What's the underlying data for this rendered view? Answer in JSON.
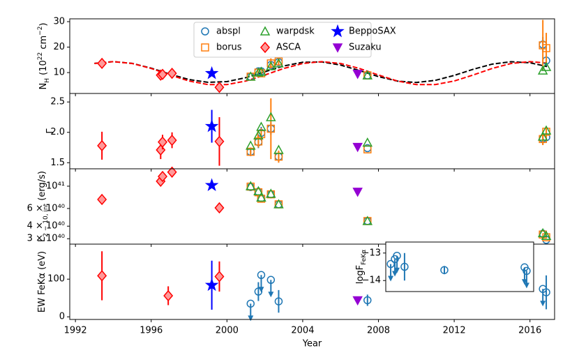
{
  "chart_data": [
    {
      "type": "scatter",
      "xlim": [
        1991.7,
        2017.3
      ],
      "ylim": [
        1.8,
        31.1
      ],
      "yticks": [
        10,
        20,
        30
      ],
      "ylabel_parts": [
        {
          "text": "N",
          "shift": null
        },
        {
          "text": "H",
          "shift": "sub"
        },
        {
          "text": " (10",
          "shift": null
        },
        {
          "text": "22",
          "shift": "super"
        },
        {
          "text": " cm",
          "shift": null
        },
        {
          "text": "−2",
          "shift": "super"
        },
        {
          "text": ")",
          "shift": null
        }
      ],
      "legend": "upper center",
      "curves": [
        {
          "color": "#000000",
          "style": "dashed",
          "x": [
            1993,
            1994,
            1995,
            1996,
            1997,
            1998,
            1999,
            2000,
            2001,
            2002,
            2003,
            2004,
            2005,
            2006,
            2007,
            2008,
            2009,
            2010,
            2011,
            2012,
            2013,
            2014,
            2015,
            2016,
            2016.9
          ],
          "values": [
            13.6,
            14.3,
            13.6,
            11.74,
            9.36,
            7.26,
            6.17,
            6.46,
            8.01,
            10.32,
            12.59,
            14.04,
            14.18,
            12.96,
            10.8,
            8.43,
            6.67,
            6.11,
            6.94,
            8.89,
            11.29,
            13.31,
            14.27,
            13.84,
            12.38
          ]
        },
        {
          "color": "#ff0000",
          "style": "dashed",
          "x": [
            1993,
            1994,
            1995,
            1996,
            1997,
            1998,
            1999,
            2000,
            2001,
            2002,
            2003,
            2004,
            2005,
            2006,
            2007,
            2008,
            2009,
            2010,
            2011,
            2012,
            2013,
            2014,
            2015,
            2016,
            2016.9
          ],
          "values": [
            13.57,
            14.3,
            13.57,
            11.61,
            9.05,
            6.69,
            5.29,
            5.29,
            6.69,
            9.05,
            11.61,
            13.57,
            14.3,
            13.57,
            11.61,
            9.05,
            6.69,
            5.29,
            5.29,
            6.69,
            9.05,
            11.61,
            13.57,
            14.3,
            13.71
          ]
        }
      ],
      "series": [
        {
          "name": "abspl",
          "color": "#1f77b4",
          "marker": "circle",
          "fill": "none",
          "x": [
            2001.25,
            2001.66,
            2001.81,
            2002.32,
            2002.73,
            2007.42,
            2016.68,
            2016.86
          ],
          "values": [
            8.4,
            10.5,
            10.5,
            13.0,
            14.1,
            8.9,
            21,
            14.7
          ],
          "errors": [
            null,
            null,
            null,
            1.5,
            1.5,
            null,
            3,
            2
          ]
        },
        {
          "name": "borus",
          "color": "#ff7f0e",
          "marker": "square",
          "fill": "none",
          "x": [
            2001.25,
            2001.66,
            2001.81,
            2002.32,
            2002.73,
            2007.42,
            2016.68,
            2016.86
          ],
          "values": [
            8.4,
            10,
            9.7,
            13.6,
            14.4,
            8.9,
            20.7,
            19.6
          ],
          "errors": [
            null,
            null,
            null,
            2,
            1.5,
            null,
            10,
            6
          ]
        },
        {
          "name": "warpdsk",
          "color": "#2ca02c",
          "marker": "triangle",
          "fill": "none",
          "x": [
            2001.25,
            2001.66,
            2001.81,
            2002.32,
            2002.73,
            2007.42,
            2016.68,
            2016.86
          ],
          "values": [
            8.4,
            10,
            10.3,
            12.5,
            13.6,
            8.9,
            10.8,
            12.2
          ],
          "errors": [
            null,
            null,
            null,
            null,
            null,
            null,
            null,
            null
          ]
        },
        {
          "name": "ASCA",
          "color": "#ff0000",
          "marker": "diamond",
          "fill": "#ff9999",
          "x": [
            1993.4,
            1996.5,
            1996.6,
            1997.1,
            1999.6
          ],
          "values": [
            13.6,
            9.0,
            9.3,
            9.7,
            4.2
          ],
          "errors": [
            1,
            null,
            null,
            null,
            null
          ]
        },
        {
          "name": "BeppoSAX",
          "color": "#0000ff",
          "marker": "star",
          "fill": "#0000ff",
          "x": [
            1999.2
          ],
          "values": [
            9.7
          ],
          "errors": [
            null
          ]
        },
        {
          "name": "Suzaku",
          "color": "#9400d3",
          "marker": "triangle-down",
          "fill": "#9400d3",
          "x": [
            2006.9
          ],
          "values": [
            9.5
          ],
          "errors": [
            null
          ]
        }
      ]
    },
    {
      "type": "scatter",
      "xlim": [
        1991.7,
        2017.3
      ],
      "ylim": [
        1.4,
        2.64
      ],
      "yticks": [
        {
          "value": 1.5,
          "label": "1.5"
        },
        {
          "value": 2.0,
          "label": "2.0"
        },
        {
          "value": 2.5,
          "label": "2.5"
        }
      ],
      "ylabel_parts": [
        {
          "text": "Γ",
          "shift": null
        }
      ],
      "series": [
        {
          "name": "abspl",
          "color": "#1f77b4",
          "marker": "circle",
          "fill": "none",
          "x": [
            2001.25,
            2001.66,
            2001.81,
            2002.32,
            2002.73,
            2007.42,
            2016.68,
            2016.86
          ],
          "values": [
            1.68,
            1.84,
            1.99,
            2.06,
            1.6,
            1.74,
            1.9,
            1.92
          ],
          "errors": [
            0.07,
            0.1,
            0.1,
            0.1,
            0.08,
            null,
            0.1,
            0.08
          ]
        },
        {
          "name": "borus",
          "color": "#ff7f0e",
          "marker": "square",
          "fill": "none",
          "x": [
            2001.25,
            2001.66,
            2001.81,
            2002.32,
            2002.73,
            2007.42,
            2016.68,
            2016.86
          ],
          "values": [
            1.68,
            1.85,
            1.97,
            2.06,
            1.6,
            1.72,
            1.89,
            2.01
          ],
          "errors": [
            0.07,
            0.1,
            0.1,
            0.5,
            0.1,
            null,
            0.1,
            0.08
          ]
        },
        {
          "name": "warpdsk",
          "color": "#2ca02c",
          "marker": "triangle",
          "fill": "none",
          "x": [
            2001.25,
            2001.66,
            2001.81,
            2002.32,
            2002.73,
            2007.42,
            2016.68,
            2016.86
          ],
          "values": [
            1.78,
            1.95,
            2.09,
            2.25,
            1.71,
            1.83,
            1.93,
            2.03
          ],
          "errors": [
            null,
            null,
            null,
            null,
            null,
            null,
            null,
            null
          ]
        },
        {
          "name": "ASCA",
          "color": "#ff0000",
          "marker": "diamond",
          "fill": "#ff9999",
          "x": [
            1993.4,
            1996.5,
            1996.6,
            1997.1,
            1999.6
          ],
          "values": [
            1.78,
            1.71,
            1.84,
            1.87,
            1.85
          ],
          "errors": [
            0.23,
            0.15,
            0.12,
            0.13,
            0.4
          ]
        },
        {
          "name": "BeppoSAX",
          "color": "#0000ff",
          "marker": "star",
          "fill": "#0000ff",
          "x": [
            1999.2
          ],
          "values": [
            2.1
          ],
          "errors": [
            0.27
          ]
        },
        {
          "name": "Suzaku",
          "color": "#9400d3",
          "marker": "triangle-down",
          "fill": "#9400d3",
          "x": [
            2006.9
          ],
          "values": [
            1.76
          ],
          "errors": [
            null
          ]
        }
      ]
    },
    {
      "type": "scatter",
      "xlim": [
        1991.7,
        2017.3
      ],
      "ylim": [
        2.65e+40,
        1.49e+41
      ],
      "ylog": true,
      "yticks": [
        {
          "value": 3e+40,
          "label": "3 × 10⁴⁰"
        },
        {
          "value": 4e+40,
          "label": "4 × 10⁴⁰"
        },
        {
          "value": 6e+40,
          "label": "6 × 10⁴⁰"
        },
        {
          "value": 1e+41,
          "label": "10⁴¹"
        }
      ],
      "ylabel_parts": [
        {
          "text": "L",
          "shift": null
        },
        {
          "text": "2 − 10, int",
          "shift": "sub"
        },
        {
          "text": " (erg/s)",
          "shift": null
        }
      ],
      "series": [
        {
          "name": "abspl",
          "color": "#1f77b4",
          "marker": "circle",
          "fill": "none",
          "x": [
            2001.25,
            2001.66,
            2001.81,
            2002.32,
            2002.73,
            2007.42,
            2016.68,
            2016.86
          ],
          "values": [
            9.8e+40,
            8.8e+40,
            7.6e+40,
            8.3e+40,
            6.6e+40,
            4.5e+40,
            3.37e+40,
            2.92e+40
          ],
          "errors": [
            null,
            null,
            null,
            null,
            null,
            null,
            null,
            null
          ]
        },
        {
          "name": "borus",
          "color": "#ff7f0e",
          "marker": "square",
          "fill": "none",
          "x": [
            2001.25,
            2001.66,
            2001.81,
            2002.32,
            2002.73,
            2007.42,
            2016.68,
            2016.86
          ],
          "values": [
            9.9e+40,
            8.7e+40,
            7.5e+40,
            8.3e+40,
            6.6e+40,
            4.5e+40,
            3.3e+40,
            3.1e+40
          ],
          "errors": [
            null,
            null,
            null,
            null,
            null,
            null,
            null,
            null
          ]
        },
        {
          "name": "warpdsk",
          "color": "#2ca02c",
          "marker": "triangle",
          "fill": "none",
          "x": [
            2001.25,
            2001.66,
            2001.81,
            2002.32,
            2002.73,
            2007.42,
            2016.68,
            2016.86
          ],
          "values": [
            1e+41,
            8.9e+40,
            7.7e+40,
            8.4e+40,
            6.6e+40,
            4.5e+40,
            3.4e+40,
            3.2e+40
          ],
          "errors": [
            null,
            null,
            null,
            null,
            null,
            null,
            null,
            null
          ]
        },
        {
          "name": "ASCA",
          "color": "#ff0000",
          "marker": "diamond",
          "fill": "#ff9999",
          "x": [
            1993.4,
            1996.5,
            1996.6,
            1997.1,
            1999.6
          ],
          "values": [
            7.38e+40,
            1.12e+41,
            1.25e+41,
            1.38e+41,
            6.09e+40
          ],
          "errors": [
            null,
            null,
            null,
            null,
            null
          ]
        },
        {
          "name": "BeppoSAX",
          "color": "#0000ff",
          "marker": "star",
          "fill": "#0000ff",
          "x": [
            1999.2
          ],
          "values": [
            1.02e+41
          ],
          "errors": [
            null
          ]
        },
        {
          "name": "Suzaku",
          "color": "#9400d3",
          "marker": "triangle-down",
          "fill": "#9400d3",
          "x": [
            2006.9
          ],
          "values": [
            8.8e+40
          ],
          "errors": [
            null
          ]
        }
      ]
    },
    {
      "type": "scatter",
      "xlim": [
        1991.7,
        2017.3
      ],
      "ylim": [
        -7,
        193
      ],
      "yticks": [
        0,
        100
      ],
      "xticks": [
        1992,
        1996,
        2000,
        2004,
        2008,
        2012,
        2016
      ],
      "xlabel": "Year",
      "ylabel_parts": [
        {
          "text": "EW FeKα (eV)",
          "shift": null
        }
      ],
      "series": [
        {
          "name": "abspl",
          "color": "#1f77b4",
          "marker": "circle",
          "fill": "none",
          "x": [
            2001.25,
            2001.66,
            2001.81,
            2002.32,
            2002.73,
            2007.42,
            2016.68,
            2016.86
          ],
          "values": [
            35,
            67,
            111,
            98,
            41,
            44,
            74,
            65
          ],
          "errors": [
            null,
            25,
            null,
            null,
            30,
            15,
            null,
            45
          ],
          "upper_limits": [
            true,
            false,
            true,
            true,
            false,
            false,
            true,
            false
          ]
        },
        {
          "name": "ASCA",
          "color": "#ff0000",
          "marker": "diamond",
          "fill": "#ff9999",
          "x": [
            1993.4,
            1996.9,
            1999.6
          ],
          "values": [
            109,
            56,
            107
          ],
          "errors": [
            65,
            25,
            40
          ]
        },
        {
          "name": "BeppoSAX",
          "color": "#0000ff",
          "marker": "star",
          "fill": "#0000ff",
          "x": [
            1999.2
          ],
          "values": [
            84
          ],
          "errors": [
            65
          ]
        },
        {
          "name": "Suzaku",
          "color": "#9400d3",
          "marker": "triangle-down",
          "fill": "#9400d3",
          "x": [
            2006.9
          ],
          "values": [
            44
          ],
          "errors": [
            10
          ]
        }
      ]
    },
    {
      "type": "scatter",
      "xlim": [
        2008.0,
        2015.8
      ],
      "ylim": [
        -14.4,
        -12.6
      ],
      "yticks": [
        {
          "value": -14,
          "label": "−14"
        },
        {
          "value": -13,
          "label": "−13"
        }
      ],
      "ylabel_parts": [
        {
          "text": "logF",
          "shift": null
        },
        {
          "text": "FeKα",
          "shift": "sub"
        }
      ],
      "series": [
        {
          "name": "abspl",
          "color": "#1f77b4",
          "marker": "circle",
          "fill": "none",
          "x": [
            2008.26,
            2008.48,
            2008.59,
            2008.99,
            2011.09,
            2015.32,
            2015.43
          ],
          "values": [
            -13.4,
            -13.22,
            -13.1,
            -13.5,
            -13.62,
            -13.52,
            -13.65
          ],
          "errors": [
            null,
            null,
            null,
            0.5,
            0.15,
            null,
            null
          ],
          "upper_limits": [
            true,
            true,
            true,
            false,
            false,
            true,
            true
          ]
        }
      ]
    }
  ]
}
